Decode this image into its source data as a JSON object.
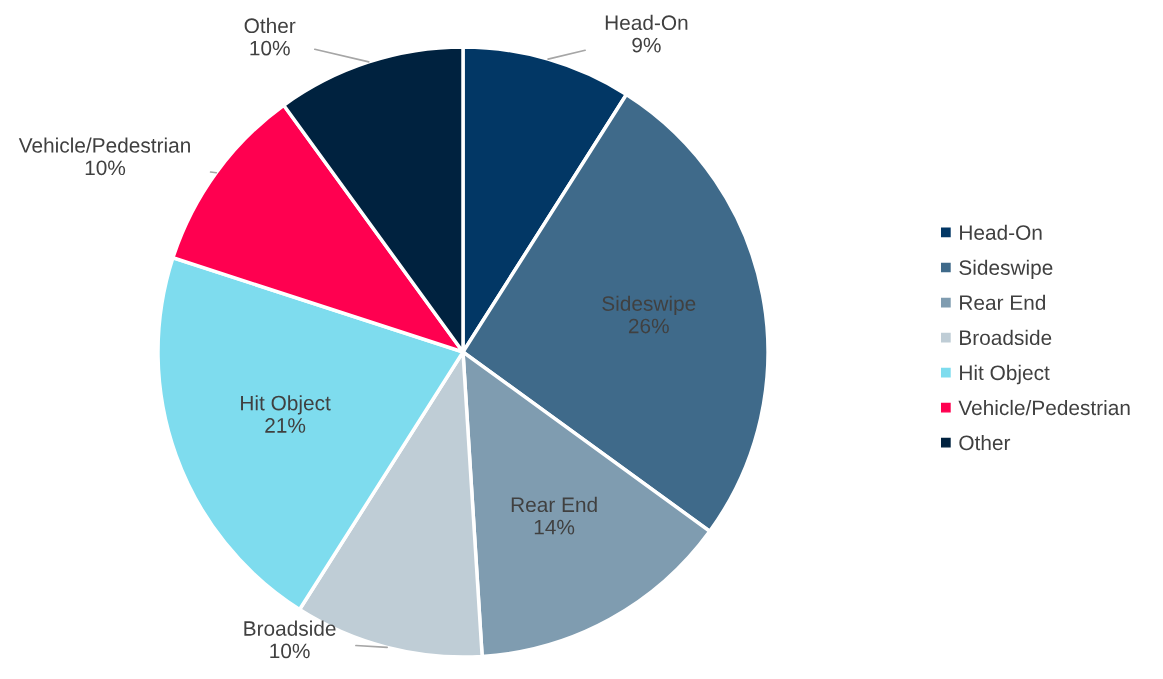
{
  "chart_data": {
    "type": "pie",
    "categories": [
      "Head-On",
      "Sideswipe",
      "Rear End",
      "Broadside",
      "Hit Object",
      "Vehicle/Pedestrian",
      "Other"
    ],
    "values": [
      9,
      26,
      14,
      10,
      21,
      10,
      10
    ],
    "colors": [
      "#023765",
      "#3f6a8a",
      "#7f9cb0",
      "#bfcdd6",
      "#7edcee",
      "#ff0050",
      "#00223f"
    ],
    "value_labels": [
      "9%",
      "26%",
      "14%",
      "10%",
      "21%",
      "10%",
      "10%"
    ],
    "legend": "right"
  }
}
